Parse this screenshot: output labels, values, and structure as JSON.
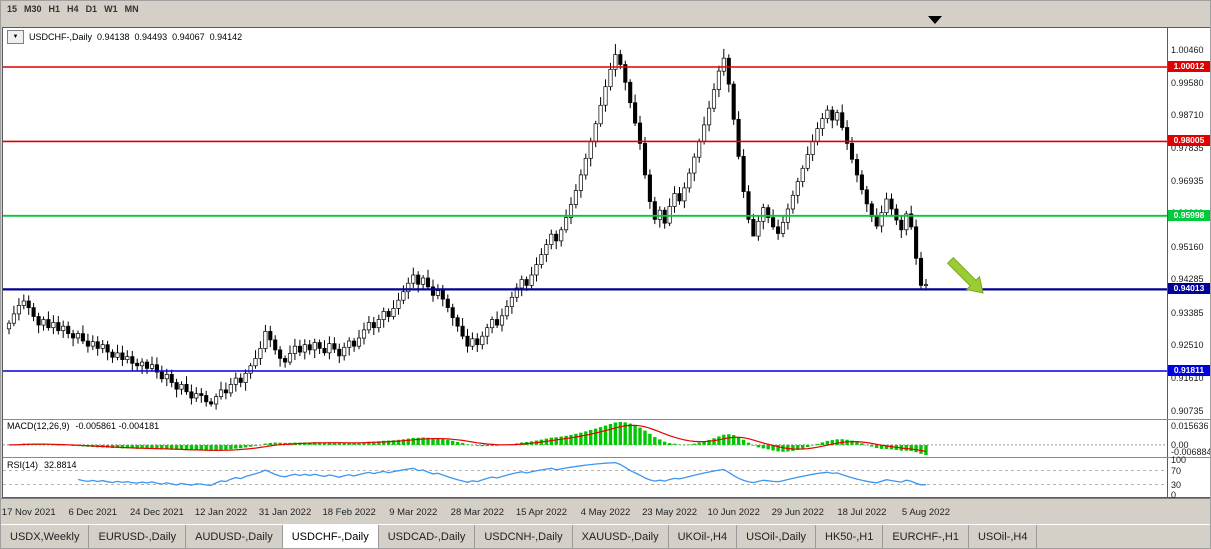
{
  "toolbar": {
    "timeframes": [
      "15",
      "M30",
      "H1",
      "H4",
      "D1",
      "W1",
      "MN"
    ]
  },
  "icons": {
    "dropdown": "▼"
  },
  "chart": {
    "symbol_period": "USDCHF-,Daily",
    "open": "0.94138",
    "high": "0.94493",
    "low": "0.94067",
    "close": "0.94142",
    "hlines": [
      {
        "price": 1.00012,
        "label": "1.00012",
        "color": "#e00000",
        "width": 1.6
      },
      {
        "price": 0.98005,
        "label": "0.98005",
        "color": "#e00000",
        "width": 1.6
      },
      {
        "price": 0.95998,
        "label": "0.95998",
        "color": "#00ca3c",
        "width": 1.8
      },
      {
        "price": 0.94013,
        "label": "0.94013",
        "color": "#000096",
        "width": 2.2
      },
      {
        "price": 0.91811,
        "label": "0.91811",
        "color": "#0000e1",
        "width": 1.6
      }
    ]
  },
  "price_axis": {
    "ticks": [
      "1.00460",
      "0.99580",
      "0.98710",
      "0.97835",
      "0.96935",
      "0.96060",
      "0.95160",
      "0.94285",
      "0.93385",
      "0.92510",
      "0.91610",
      "0.90735"
    ]
  },
  "chart_data": {
    "type": "candlestick",
    "title": "USDCHF-,Daily",
    "symbol": "USDCHF-",
    "timeframe": "Daily",
    "x_tick_labels": [
      "17 Nov 2021",
      "6 Dec 2021",
      "24 Dec 2021",
      "12 Jan 2022",
      "31 Jan 2022",
      "18 Feb 2022",
      "9 Mar 2022",
      "28 Mar 2022",
      "15 Apr 2022",
      "4 May 2022",
      "23 May 2022",
      "10 Jun 2022",
      "29 Jun 2022",
      "18 Jul 2022",
      "5 Aug 2022"
    ],
    "ylim": [
      0.90516,
      1.01064
    ],
    "first_open": 0.9295,
    "closes": [
      0.931,
      0.9335,
      0.9358,
      0.937,
      0.9352,
      0.9328,
      0.9305,
      0.932,
      0.9298,
      0.9312,
      0.929,
      0.9302,
      0.9282,
      0.927,
      0.9282,
      0.9262,
      0.9248,
      0.926,
      0.9242,
      0.9252,
      0.9232,
      0.9218,
      0.923,
      0.9212,
      0.922,
      0.9202,
      0.9195,
      0.9205,
      0.9188,
      0.9198,
      0.9178,
      0.916,
      0.9172,
      0.915,
      0.9132,
      0.9145,
      0.9125,
      0.9108,
      0.912,
      0.9115,
      0.9098,
      0.9092,
      0.9112,
      0.913,
      0.9122,
      0.9145,
      0.9162,
      0.915,
      0.9175,
      0.9195,
      0.9215,
      0.9242,
      0.9288,
      0.9265,
      0.9238,
      0.9215,
      0.9205,
      0.9228,
      0.9248,
      0.9232,
      0.9252,
      0.9238,
      0.9258,
      0.9242,
      0.923,
      0.9255,
      0.924,
      0.9222,
      0.9245,
      0.9262,
      0.9248,
      0.927,
      0.9292,
      0.9312,
      0.9298,
      0.932,
      0.9342,
      0.9328,
      0.935,
      0.9372,
      0.9395,
      0.9418,
      0.944,
      0.9415,
      0.9432,
      0.9408,
      0.9385,
      0.9398,
      0.9375,
      0.9352,
      0.9325,
      0.9302,
      0.9275,
      0.9248,
      0.9268,
      0.9252,
      0.9275,
      0.9298,
      0.932,
      0.9305,
      0.933,
      0.9355,
      0.938,
      0.9405,
      0.9428,
      0.9412,
      0.944,
      0.9468,
      0.9495,
      0.9522,
      0.955,
      0.9532,
      0.9562,
      0.9595,
      0.963,
      0.9668,
      0.971,
      0.9755,
      0.98,
      0.9848,
      0.9898,
      0.9948,
      0.9995,
      1.0035,
      1.0008,
      0.996,
      0.9905,
      0.985,
      0.9795,
      0.971,
      0.9638,
      0.959,
      0.9615,
      0.958,
      0.9625,
      0.966,
      0.964,
      0.9675,
      0.9715,
      0.9758,
      0.98,
      0.9845,
      0.989,
      0.994,
      0.999,
      1.0025,
      0.9955,
      0.986,
      0.976,
      0.9665,
      0.959,
      0.9545,
      0.9585,
      0.9622,
      0.9595,
      0.957,
      0.9552,
      0.9582,
      0.9618,
      0.9655,
      0.9692,
      0.9728,
      0.9765,
      0.98,
      0.9835,
      0.9862,
      0.9885,
      0.9858,
      0.9878,
      0.9838,
      0.9795,
      0.9752,
      0.971,
      0.967,
      0.9632,
      0.9598,
      0.9572,
      0.9608,
      0.9645,
      0.9618,
      0.9588,
      0.9562,
      0.9605,
      0.957,
      0.9485,
      0.9412,
      0.94142
    ],
    "wick_overrides": {
      "41": {
        "low": 0.9085
      },
      "82": {
        "high": 0.946
      },
      "123": {
        "high": 1.0063
      },
      "145": {
        "high": 1.005
      },
      "151": {
        "low": 0.9545
      },
      "186": {
        "low": 0.9398
      }
    }
  },
  "indicators": {
    "macd": {
      "label": "MACD(12,26,9)",
      "values_text": "-0.005861 -0.004181",
      "params": [
        12,
        26,
        9
      ],
      "axis_labels": {
        "top": "0.015636",
        "zero": "0.00",
        "bottom": "-0.006884"
      }
    },
    "rsi": {
      "label": "RSI(14)",
      "value_text": "32.8814",
      "period": 14,
      "levels": [
        70,
        30
      ],
      "axis_labels": [
        "100",
        "70",
        "30",
        "0"
      ]
    }
  },
  "annotation": {
    "name": "down-arrow",
    "color": "#9acd32",
    "outline": "#7ca122"
  },
  "colors": {
    "app_bg": "#d4d0c8",
    "chart_bg": "#ffffff",
    "bull_candle": "#ffffff",
    "bear_candle": "#000000",
    "candle_outline": "#000000",
    "macd_histogram": "#00c800",
    "macd_signal": "#e80000",
    "rsi_line": "#3c96f0",
    "level_dashed": "#b4b4b4"
  },
  "tabs": [
    {
      "label": "USDX,Weekly",
      "active": false
    },
    {
      "label": "EURUSD-,Daily",
      "active": false
    },
    {
      "label": "AUDUSD-,Daily",
      "active": false
    },
    {
      "label": "USDCHF-,Daily",
      "active": true
    },
    {
      "label": "USDCAD-,Daily",
      "active": false
    },
    {
      "label": "USDCNH-,Daily",
      "active": false
    },
    {
      "label": "XAUUSD-,Daily",
      "active": false
    },
    {
      "label": "UKOil-,H4",
      "active": false
    },
    {
      "label": "USOil-,Daily",
      "active": false
    },
    {
      "label": "HK50-,H1",
      "active": false
    },
    {
      "label": "EURCHF-,H1",
      "active": false
    },
    {
      "label": "USOil-,H4",
      "active": false
    }
  ]
}
